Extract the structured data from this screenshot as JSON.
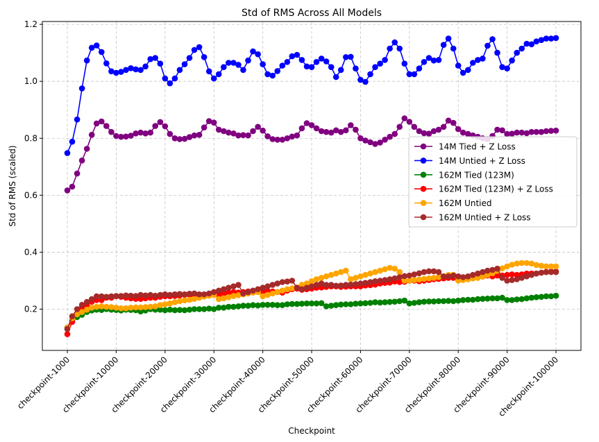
{
  "chart_data": {
    "type": "line",
    "title": "Std of RMS Across All Models",
    "xlabel": "Checkpoint",
    "ylabel": "Std of RMS (scaled)",
    "x_tick_labels": [
      "checkpoint-1000",
      "checkpoint-10000",
      "checkpoint-20000",
      "checkpoint-30000",
      "checkpoint-40000",
      "checkpoint-50000",
      "checkpoint-60000",
      "checkpoint-70000",
      "checkpoint-80000",
      "checkpoint-90000",
      "checkpoint-100000"
    ],
    "y_ticks": [
      0.2,
      0.4,
      0.6,
      0.8,
      1.0,
      1.2
    ],
    "y_tick_labels": [
      "0.2",
      "0.4",
      "0.6",
      "0.8",
      "1.0",
      "1.2"
    ],
    "ylim": [
      0.055,
      1.21
    ],
    "grid": true,
    "legend_position": "center-right",
    "series": [
      {
        "name": "14M Tied + Z Loss",
        "color": "#800080",
        "values": [
          0.617,
          0.63,
          0.676,
          0.722,
          0.763,
          0.812,
          0.852,
          0.859,
          0.843,
          0.822,
          0.808,
          0.805,
          0.806,
          0.809,
          0.817,
          0.82,
          0.817,
          0.82,
          0.843,
          0.857,
          0.842,
          0.815,
          0.8,
          0.797,
          0.798,
          0.804,
          0.81,
          0.812,
          0.838,
          0.86,
          0.855,
          0.83,
          0.825,
          0.82,
          0.817,
          0.81,
          0.811,
          0.81,
          0.825,
          0.84,
          0.827,
          0.807,
          0.797,
          0.795,
          0.795,
          0.8,
          0.806,
          0.81,
          0.835,
          0.853,
          0.846,
          0.835,
          0.825,
          0.822,
          0.82,
          0.828,
          0.822,
          0.828,
          0.846,
          0.83,
          0.8,
          0.792,
          0.786,
          0.78,
          0.785,
          0.795,
          0.805,
          0.815,
          0.84,
          0.87,
          0.858,
          0.84,
          0.825,
          0.818,
          0.816,
          0.825,
          0.83,
          0.84,
          0.862,
          0.854,
          0.832,
          0.82,
          0.815,
          0.81,
          0.805,
          0.8,
          0.797,
          0.808,
          0.83,
          0.828,
          0.815,
          0.816,
          0.82,
          0.82,
          0.818,
          0.822,
          0.822,
          0.822,
          0.825,
          0.826,
          0.827
        ]
      },
      {
        "name": "14M Untied + Z Loss",
        "color": "#0000ff",
        "values": [
          0.748,
          0.788,
          0.866,
          0.975,
          1.073,
          1.118,
          1.126,
          1.103,
          1.063,
          1.035,
          1.03,
          1.033,
          1.04,
          1.046,
          1.042,
          1.04,
          1.052,
          1.078,
          1.082,
          1.062,
          1.01,
          0.993,
          1.01,
          1.04,
          1.06,
          1.082,
          1.11,
          1.12,
          1.085,
          1.035,
          1.01,
          1.025,
          1.05,
          1.065,
          1.065,
          1.058,
          1.04,
          1.073,
          1.105,
          1.095,
          1.06,
          1.025,
          1.02,
          1.036,
          1.055,
          1.068,
          1.088,
          1.093,
          1.075,
          1.052,
          1.05,
          1.068,
          1.08,
          1.07,
          1.05,
          1.015,
          1.04,
          1.085,
          1.086,
          1.045,
          1.005,
          0.998,
          1.025,
          1.05,
          1.062,
          1.075,
          1.115,
          1.137,
          1.115,
          1.062,
          1.025,
          1.025,
          1.045,
          1.068,
          1.082,
          1.073,
          1.075,
          1.128,
          1.15,
          1.115,
          1.055,
          1.03,
          1.04,
          1.065,
          1.075,
          1.08,
          1.125,
          1.148,
          1.1,
          1.05,
          1.045,
          1.073,
          1.1,
          1.115,
          1.132,
          1.13,
          1.14,
          1.145,
          1.15,
          1.15,
          1.152
        ]
      },
      {
        "name": "162M Tied (123M)",
        "color": "#008000",
        "values": [
          0.135,
          0.16,
          0.172,
          0.18,
          0.19,
          0.195,
          0.198,
          0.197,
          0.2,
          0.198,
          0.197,
          0.195,
          0.198,
          0.197,
          0.196,
          0.192,
          0.195,
          0.2,
          0.198,
          0.198,
          0.196,
          0.198,
          0.196,
          0.197,
          0.196,
          0.198,
          0.2,
          0.2,
          0.2,
          0.202,
          0.2,
          0.205,
          0.205,
          0.208,
          0.208,
          0.21,
          0.212,
          0.212,
          0.214,
          0.213,
          0.215,
          0.215,
          0.215,
          0.214,
          0.214,
          0.217,
          0.218,
          0.218,
          0.219,
          0.22,
          0.22,
          0.22,
          0.221,
          0.21,
          0.212,
          0.214,
          0.216,
          0.217,
          0.217,
          0.219,
          0.22,
          0.221,
          0.222,
          0.224,
          0.223,
          0.224,
          0.225,
          0.226,
          0.228,
          0.23,
          0.22,
          0.222,
          0.224,
          0.226,
          0.227,
          0.227,
          0.228,
          0.228,
          0.229,
          0.228,
          0.23,
          0.232,
          0.233,
          0.233,
          0.235,
          0.236,
          0.237,
          0.238,
          0.238,
          0.24,
          0.232,
          0.232,
          0.234,
          0.235,
          0.238,
          0.24,
          0.242,
          0.243,
          0.245,
          0.245,
          0.247
        ]
      },
      {
        "name": "162M Tied (123M) + Z Loss",
        "color": "#ff0000",
        "values": [
          0.112,
          0.155,
          0.185,
          0.2,
          0.215,
          0.226,
          0.232,
          0.232,
          0.24,
          0.24,
          0.245,
          0.243,
          0.24,
          0.238,
          0.236,
          0.236,
          0.238,
          0.24,
          0.24,
          0.243,
          0.245,
          0.245,
          0.246,
          0.248,
          0.25,
          0.25,
          0.247,
          0.246,
          0.247,
          0.25,
          0.25,
          0.25,
          0.255,
          0.258,
          0.26,
          0.258,
          0.26,
          0.262,
          0.262,
          0.262,
          0.262,
          0.263,
          0.262,
          0.26,
          0.258,
          0.265,
          0.27,
          0.272,
          0.268,
          0.27,
          0.272,
          0.275,
          0.276,
          0.278,
          0.28,
          0.28,
          0.278,
          0.279,
          0.28,
          0.28,
          0.28,
          0.283,
          0.284,
          0.286,
          0.29,
          0.292,
          0.293,
          0.297,
          0.295,
          0.296,
          0.3,
          0.3,
          0.298,
          0.3,
          0.302,
          0.305,
          0.306,
          0.308,
          0.31,
          0.31,
          0.31,
          0.312,
          0.313,
          0.313,
          0.315,
          0.316,
          0.318,
          0.315,
          0.318,
          0.318,
          0.32,
          0.322,
          0.32,
          0.322,
          0.325,
          0.325,
          0.325,
          0.328,
          0.33,
          0.332,
          0.332
        ]
      },
      {
        "name": "162M Untied",
        "color": "#ffa500",
        "values": [
          0.135,
          0.168,
          0.182,
          0.19,
          0.198,
          0.205,
          0.208,
          0.21,
          0.208,
          0.207,
          0.205,
          0.203,
          0.203,
          0.205,
          0.206,
          0.206,
          0.207,
          0.208,
          0.21,
          0.214,
          0.217,
          0.22,
          0.224,
          0.228,
          0.231,
          0.233,
          0.236,
          0.24,
          0.244,
          0.247,
          0.25,
          0.235,
          0.238,
          0.242,
          0.246,
          0.249,
          0.252,
          0.255,
          0.258,
          0.26,
          0.245,
          0.25,
          0.255,
          0.26,
          0.265,
          0.27,
          0.273,
          0.276,
          0.285,
          0.29,
          0.298,
          0.305,
          0.31,
          0.315,
          0.32,
          0.325,
          0.33,
          0.335,
          0.305,
          0.31,
          0.315,
          0.32,
          0.325,
          0.33,
          0.335,
          0.34,
          0.345,
          0.342,
          0.33,
          0.3,
          0.3,
          0.302,
          0.304,
          0.306,
          0.308,
          0.31,
          0.312,
          0.315,
          0.32,
          0.32,
          0.3,
          0.302,
          0.305,
          0.308,
          0.31,
          0.314,
          0.32,
          0.326,
          0.334,
          0.343,
          0.35,
          0.356,
          0.36,
          0.362,
          0.362,
          0.36,
          0.355,
          0.352,
          0.35,
          0.35,
          0.35
        ]
      },
      {
        "name": "162M Untied + Z Loss",
        "color": "#a52a2a",
        "values": [
          0.13,
          0.175,
          0.2,
          0.215,
          0.225,
          0.235,
          0.245,
          0.245,
          0.243,
          0.245,
          0.246,
          0.246,
          0.248,
          0.247,
          0.246,
          0.25,
          0.248,
          0.25,
          0.247,
          0.25,
          0.252,
          0.25,
          0.252,
          0.253,
          0.252,
          0.254,
          0.255,
          0.252,
          0.252,
          0.255,
          0.26,
          0.265,
          0.27,
          0.275,
          0.28,
          0.285,
          0.255,
          0.26,
          0.265,
          0.27,
          0.275,
          0.28,
          0.285,
          0.29,
          0.295,
          0.297,
          0.3,
          0.275,
          0.27,
          0.275,
          0.28,
          0.285,
          0.29,
          0.285,
          0.285,
          0.282,
          0.283,
          0.285,
          0.286,
          0.288,
          0.29,
          0.292,
          0.295,
          0.298,
          0.3,
          0.302,
          0.305,
          0.308,
          0.312,
          0.316,
          0.318,
          0.322,
          0.326,
          0.33,
          0.333,
          0.333,
          0.33,
          0.315,
          0.315,
          0.318,
          0.315,
          0.312,
          0.315,
          0.32,
          0.325,
          0.33,
          0.335,
          0.338,
          0.342,
          0.31,
          0.3,
          0.302,
          0.305,
          0.31,
          0.315,
          0.32,
          0.325,
          0.328,
          0.33,
          0.33,
          0.33
        ]
      }
    ]
  }
}
